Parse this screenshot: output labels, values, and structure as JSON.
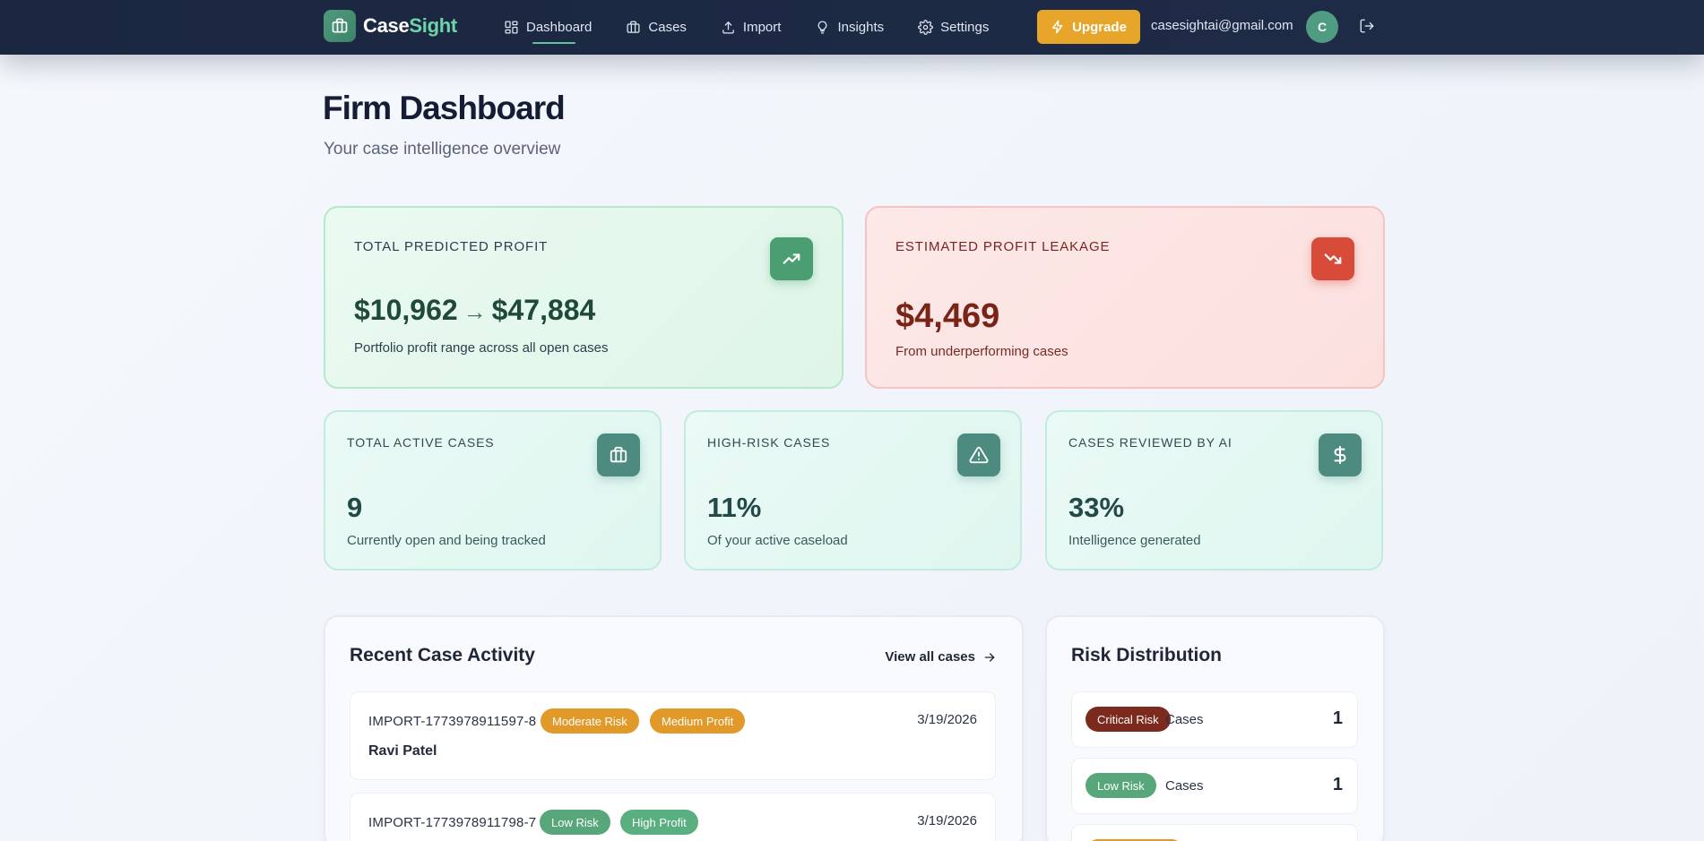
{
  "header": {
    "brand_main": "Case",
    "brand_accent": "Sight",
    "nav": [
      {
        "label": "Dashboard",
        "icon": "grid-icon",
        "active": true
      },
      {
        "label": "Cases",
        "icon": "briefcase-icon"
      },
      {
        "label": "Import",
        "icon": "upload-icon"
      },
      {
        "label": "Insights",
        "icon": "lightbulb-icon"
      },
      {
        "label": "Settings",
        "icon": "gear-icon"
      }
    ],
    "upgrade_label": "Upgrade",
    "email": "casesightai@gmail.com",
    "avatar_initial": "C"
  },
  "page": {
    "title": "Firm Dashboard",
    "subtitle": "Your case intelligence overview"
  },
  "cards": {
    "profit": {
      "label": "Total Predicted Profit",
      "low": "$10,962",
      "arrow": "→",
      "high": "$47,884",
      "desc": "Portfolio profit range across all open cases",
      "icon": "trending-up-icon"
    },
    "leakage": {
      "label": "Estimated Profit Leakage",
      "value": "$4,469",
      "desc": "From underperforming cases",
      "icon": "trending-down-icon"
    },
    "active": {
      "label": "Total Active Cases",
      "value": "9",
      "desc": "Currently open and being tracked",
      "icon": "briefcase-icon"
    },
    "high_risk": {
      "label": "High-Risk Cases",
      "value": "11%",
      "desc": "Of your active caseload",
      "icon": "warning-icon"
    },
    "reviewed": {
      "label": "Cases Reviewed by AI",
      "value": "33%",
      "desc": "Intelligence generated",
      "icon": "dollar-icon"
    }
  },
  "activity": {
    "title": "Recent Case Activity",
    "view_all": "View all cases",
    "rows": [
      {
        "id": "IMPORT-1773978911597-8",
        "risk": "Moderate Risk",
        "profit": "Medium Profit",
        "date": "3/19/2026",
        "name": "Ravi Patel"
      },
      {
        "id": "IMPORT-1773978911798-7",
        "risk": "Low Risk",
        "profit": "High Profit",
        "date": "3/19/2026",
        "name": ""
      }
    ]
  },
  "risk_distribution": {
    "title": "Risk Distribution",
    "rows": [
      {
        "label": "Critical Risk",
        "cases_label": "Cases",
        "count": "1"
      },
      {
        "label": "Low Risk",
        "cases_label": "Cases",
        "count": "1"
      }
    ]
  },
  "colors": {
    "navbar": "#1b2740",
    "brand_accent": "#6fd4a6",
    "upgrade": "#e7a52a",
    "profit_green": "#4a9e72",
    "leakage_red": "#d84b38",
    "moderate_amber": "#e19a2a",
    "low_green": "#57a77a",
    "critical_brown": "#7c2a1e"
  }
}
